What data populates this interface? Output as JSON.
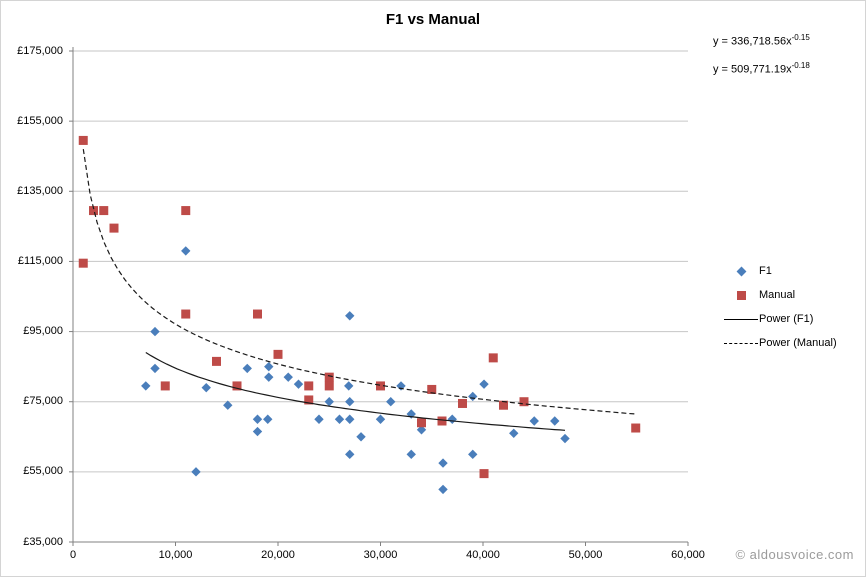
{
  "title": "F1 vs Manual",
  "equations": [
    {
      "base": "y = 336,718.56x",
      "exponent": "-0.15"
    },
    {
      "base": "y = 509,771.19x",
      "exponent": "-0.18"
    }
  ],
  "legend": [
    {
      "label": "F1",
      "marker": "diamond"
    },
    {
      "label": "Manual",
      "marker": "square"
    },
    {
      "label": "Power (F1)",
      "marker": "solid-line"
    },
    {
      "label": "Power (Manual)",
      "marker": "dashed-line"
    }
  ],
  "watermark": "© aldousvoice.com",
  "colors": {
    "f1": "#4a7ebb",
    "manual": "#be4b48",
    "trendline": "#1a1a1a",
    "gridline": "#c6c6c6",
    "axis": "#808080",
    "watermark": "#9b9b9b"
  },
  "chart_data": {
    "type": "scatter",
    "title": "F1 vs Manual",
    "xlabel": "",
    "ylabel": "",
    "xlim": [
      0,
      60000
    ],
    "ylim": [
      35000,
      175000
    ],
    "x_tick_values": [
      0,
      10000,
      20000,
      30000,
      40000,
      50000,
      60000
    ],
    "x_ticks": [
      "0",
      "10,000",
      "20,000",
      "30,000",
      "40,000",
      "50,000",
      "60,000"
    ],
    "y_tick_values": [
      35000,
      55000,
      75000,
      95000,
      115000,
      135000,
      155000,
      175000
    ],
    "y_ticks": [
      "£35,000",
      "£55,000",
      "£75,000",
      "£95,000",
      "£115,000",
      "£135,000",
      "£155,000",
      "£175,000"
    ],
    "grid": "horizontal-major",
    "legend_position": "right",
    "series": [
      {
        "name": "F1",
        "marker": "diamond",
        "color": "#4a7ebb",
        "points": [
          [
            7100,
            79500
          ],
          [
            8000,
            95000
          ],
          [
            8000,
            84500
          ],
          [
            11000,
            118000
          ],
          [
            12000,
            55000
          ],
          [
            13000,
            79000
          ],
          [
            15100,
            74000
          ],
          [
            17000,
            84500
          ],
          [
            18000,
            70000
          ],
          [
            18000,
            66500
          ],
          [
            19000,
            70000
          ],
          [
            19100,
            85000
          ],
          [
            19100,
            82000
          ],
          [
            21000,
            82000
          ],
          [
            22000,
            80000
          ],
          [
            24000,
            70000
          ],
          [
            25000,
            75000
          ],
          [
            26000,
            70000
          ],
          [
            27000,
            99500
          ],
          [
            26900,
            79500
          ],
          [
            27000,
            75000
          ],
          [
            27000,
            70000
          ],
          [
            27000,
            60000
          ],
          [
            28100,
            65000
          ],
          [
            30000,
            70000
          ],
          [
            31000,
            75000
          ],
          [
            32000,
            79500
          ],
          [
            33000,
            71500
          ],
          [
            33000,
            60000
          ],
          [
            34000,
            67000
          ],
          [
            36100,
            57500
          ],
          [
            36100,
            50000
          ],
          [
            37000,
            70000
          ],
          [
            39000,
            76500
          ],
          [
            39000,
            60000
          ],
          [
            40100,
            80000
          ],
          [
            43000,
            66000
          ],
          [
            45000,
            69500
          ],
          [
            47000,
            69500
          ],
          [
            48000,
            64500
          ]
        ]
      },
      {
        "name": "Manual",
        "marker": "square",
        "color": "#be4b48",
        "points": [
          [
            1000,
            149500
          ],
          [
            1000,
            114500
          ],
          [
            2000,
            129500
          ],
          [
            3000,
            129500
          ],
          [
            4000,
            124500
          ],
          [
            9000,
            79500
          ],
          [
            11000,
            129500
          ],
          [
            11000,
            100000
          ],
          [
            14000,
            86500
          ],
          [
            16000,
            79500
          ],
          [
            18000,
            100000
          ],
          [
            20000,
            88500
          ],
          [
            23000,
            79500
          ],
          [
            23000,
            75500
          ],
          [
            25000,
            82000
          ],
          [
            25000,
            79500
          ],
          [
            30000,
            79500
          ],
          [
            34000,
            69000
          ],
          [
            35000,
            78500
          ],
          [
            36000,
            69500
          ],
          [
            38000,
            74500
          ],
          [
            40100,
            54500
          ],
          [
            41000,
            87500
          ],
          [
            42000,
            74000
          ],
          [
            44000,
            75000
          ],
          [
            54900,
            67500
          ]
        ]
      }
    ],
    "trendlines": [
      {
        "name": "Power (F1)",
        "equation": "y = 336,718.56x^-0.15",
        "coef": 336718.56,
        "exp": -0.15,
        "style": "solid",
        "x_range": [
          7100,
          48000
        ]
      },
      {
        "name": "Power (Manual)",
        "equation": "y = 509,771.19x^-0.18",
        "coef": 509771.19,
        "exp": -0.18,
        "style": "dashed",
        "x_range": [
          1000,
          54900
        ]
      }
    ]
  }
}
